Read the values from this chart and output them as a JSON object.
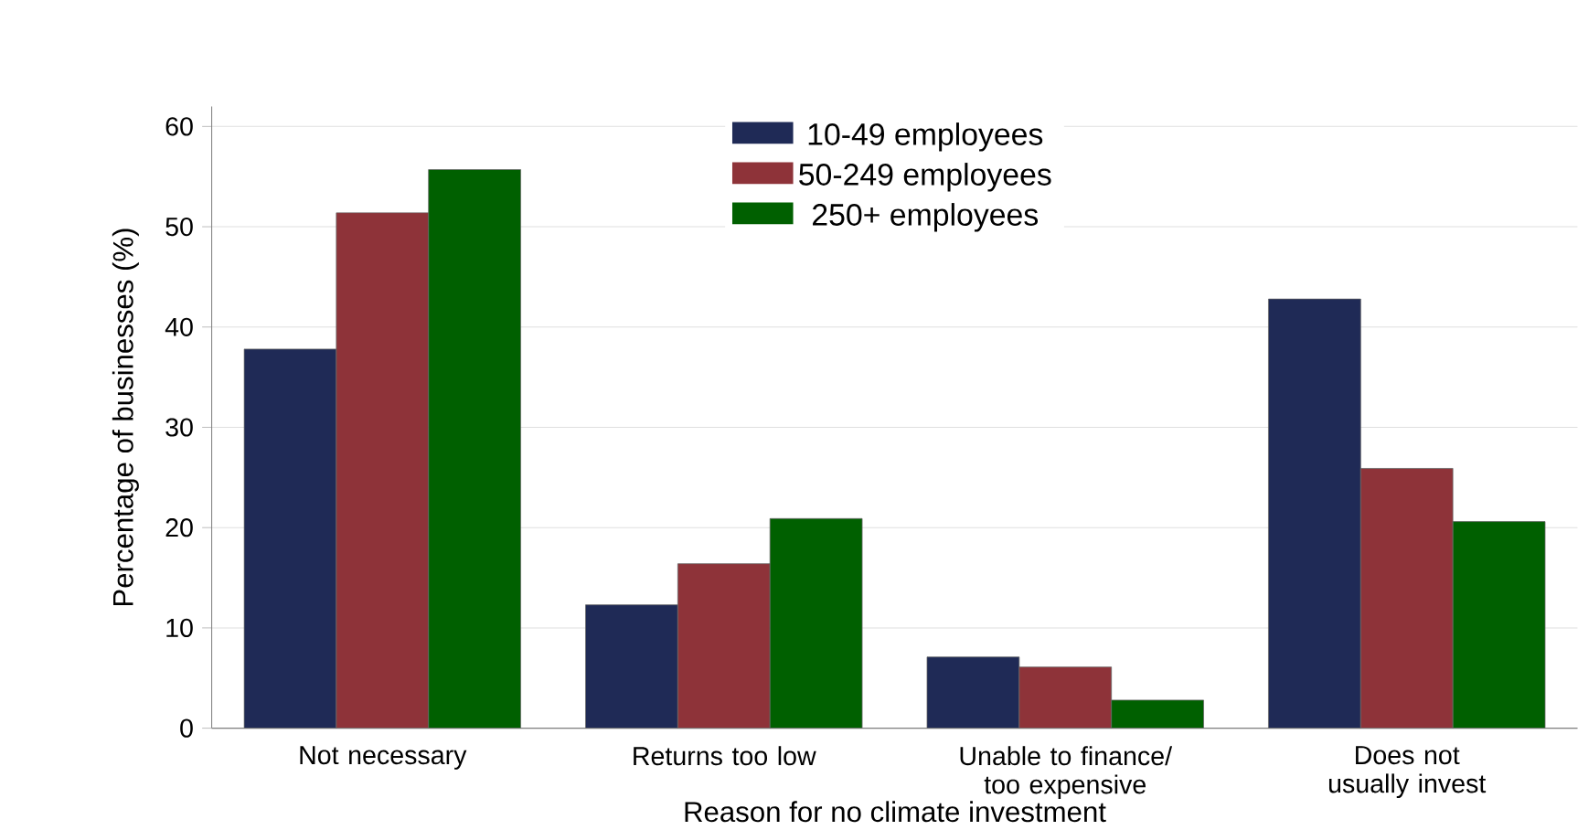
{
  "chart_data": {
    "type": "bar",
    "xlabel": "Reason for no climate investment",
    "ylabel": "Percentage of businesses (%)",
    "categories": [
      "Not necessary",
      "Returns too low",
      "Unable to finance/ too expensive",
      "Does not usually invest"
    ],
    "series": [
      {
        "name": "10-49 employees",
        "color": "#1f2a56",
        "values": [
          37.8,
          12.3,
          7.1,
          42.8
        ]
      },
      {
        "name": "50-249 employees",
        "color": "#8e3339",
        "values": [
          51.4,
          16.4,
          6.1,
          25.9
        ]
      },
      {
        "name": "250+ employees",
        "color": "#006000",
        "values": [
          55.7,
          20.9,
          2.8,
          20.6
        ]
      }
    ],
    "ylim": [
      0,
      62
    ],
    "yticks": [
      0,
      10,
      20,
      30,
      40,
      50,
      60
    ],
    "grid": "y",
    "legend": "top"
  }
}
